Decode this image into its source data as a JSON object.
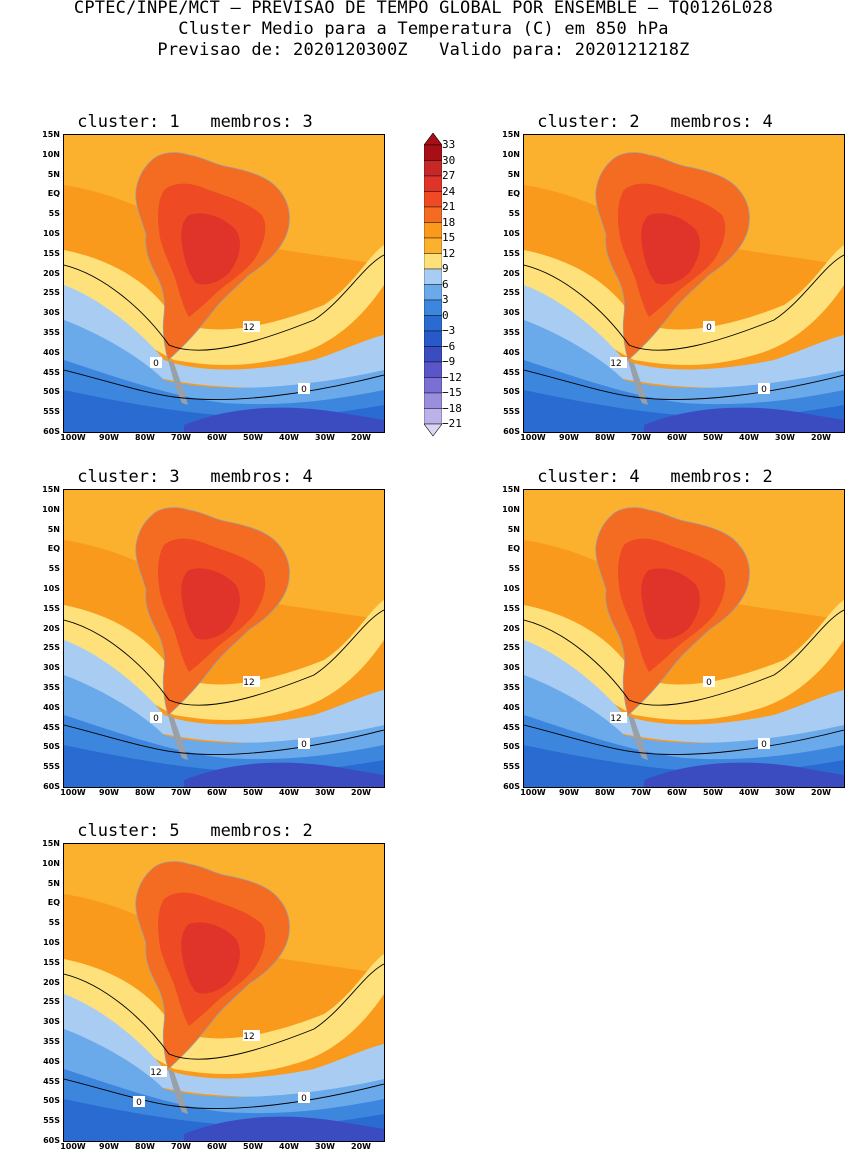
{
  "header": {
    "line1": "CPTEC/INPE/MCT – PREVISAO DE TEMPO GLOBAL POR ENSEMBLE – TQ0126L028",
    "line2": "Cluster Medio para a Temperatura (C) em 850 hPa",
    "line3": "Previsao de: 2020120300Z   Valido para: 2020121218Z"
  },
  "lat_labels": [
    "15N",
    "10N",
    "5N",
    "EQ",
    "5S",
    "10S",
    "15S",
    "20S",
    "25S",
    "30S",
    "35S",
    "40S",
    "45S",
    "50S",
    "55S",
    "60S"
  ],
  "lon_labels": [
    "100W",
    "90W",
    "80W",
    "70W",
    "60W",
    "50W",
    "40W",
    "30W",
    "20W"
  ],
  "clusters": [
    {
      "title": "cluster: 1   membros: 3",
      "contour_labels": [
        "12",
        "0",
        "0"
      ]
    },
    {
      "title": "cluster: 2   membros: 4",
      "contour_labels": [
        "0",
        "12",
        "0"
      ]
    },
    {
      "title": "cluster: 3   membros: 4",
      "contour_labels": [
        "12",
        "0",
        "0"
      ]
    },
    {
      "title": "cluster: 4   membros: 2",
      "contour_labels": [
        "0",
        "12",
        "0"
      ]
    },
    {
      "title": "cluster: 5   membros: 2",
      "contour_labels": [
        "12",
        "12",
        "0",
        "0"
      ]
    }
  ],
  "colorbar": {
    "levels": [
      "33",
      "30",
      "27",
      "24",
      "21",
      "18",
      "15",
      "12",
      "9",
      "6",
      "3",
      "0",
      "−3",
      "−6",
      "−9",
      "−12",
      "−15",
      "−18",
      "−21"
    ],
    "colors": [
      "#a50f15",
      "#c62828",
      "#e0342a",
      "#ee4a23",
      "#f36c21",
      "#f99a1c",
      "#fbb02e",
      "#fee17a",
      "#a9cdf2",
      "#6aa9ea",
      "#3d86dd",
      "#2a6bd1",
      "#2759c8",
      "#3b4cc0",
      "#5a55c8",
      "#7a6fd2",
      "#9a8fdc",
      "#bcb2e8",
      "#dcd5f3"
    ]
  }
}
